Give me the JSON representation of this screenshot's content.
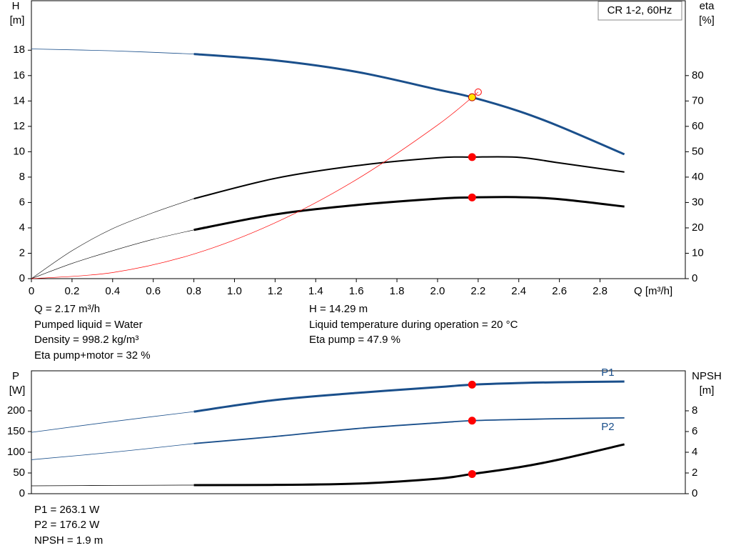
{
  "chart_data": [
    {
      "type": "line",
      "title": "CR 1-2, 60Hz",
      "ylabel": "H",
      "ylabel_unit": "[m]",
      "y2label": "eta",
      "y2label_unit": "[%]",
      "xlabel": "Q [m³/h]",
      "xlim": [
        0,
        3.22
      ],
      "ylim": [
        0,
        21.9
      ],
      "y2lim": [
        0,
        109.5
      ],
      "xticks": [
        0,
        0.2,
        0.4,
        0.6,
        0.8,
        {
          "value": 1,
          "label": "1.0"
        },
        1.2,
        1.4,
        1.6,
        1.8,
        {
          "value": 2,
          "label": "2.0"
        },
        2.2,
        2.4,
        2.6,
        2.8
      ],
      "yticks": [
        0,
        2,
        4,
        6,
        8,
        10,
        12,
        14,
        16,
        18
      ],
      "y2ticks": [
        0,
        10,
        20,
        30,
        40,
        50,
        60,
        70,
        80
      ],
      "series": [
        {
          "color": "#1a4f8b",
          "width": 0.8,
          "x": [
            0,
            0.4,
            0.8
          ],
          "values": [
            18.1,
            17.95,
            17.7
          ]
        },
        {
          "color": "#1a4f8b",
          "width": 3,
          "x": [
            0.8,
            1.2,
            1.6,
            2.0,
            2.17,
            2.4,
            2.6,
            2.92
          ],
          "values": [
            17.7,
            17.2,
            16.3,
            14.9,
            14.29,
            13.2,
            12.0,
            9.8
          ]
        },
        {
          "color": "#000000",
          "width": 0.6,
          "axis": "y2",
          "x": [
            0,
            0.2,
            0.4,
            0.6,
            0.8
          ],
          "values": [
            0,
            11,
            19.7,
            26,
            31.5
          ]
        },
        {
          "color": "#000000",
          "width": 2,
          "axis": "y2",
          "x": [
            0.8,
            1.2,
            1.6,
            2.0,
            2.17,
            2.4,
            2.6,
            2.92
          ],
          "values": [
            31.5,
            39.5,
            44.5,
            47.6,
            47.9,
            47.8,
            45.6,
            42
          ]
        },
        {
          "color": "#000000",
          "width": 0.6,
          "axis": "y2",
          "x": [
            0,
            0.2,
            0.4,
            0.6,
            0.8
          ],
          "values": [
            0,
            6,
            11,
            15.5,
            19.2
          ]
        },
        {
          "color": "#000000",
          "width": 3,
          "axis": "y2",
          "x": [
            0.8,
            1.2,
            1.6,
            2.0,
            2.17,
            2.4,
            2.6,
            2.92
          ],
          "values": [
            19.2,
            25.3,
            29,
            31.5,
            32,
            32.1,
            31.3,
            28.4
          ]
        },
        {
          "color": "#ff0000",
          "width": 0.7,
          "x": [
            0,
            0.4,
            0.8,
            1.2,
            1.6,
            2.0,
            2.2
          ],
          "values": [
            0,
            0.48,
            1.94,
            4.4,
            7.8,
            12.1,
            14.7
          ]
        }
      ],
      "markers": [
        {
          "x": 2.2,
          "value": 14.7,
          "color": "none",
          "stroke": "#ff0000"
        },
        {
          "x": 2.17,
          "value": 14.29,
          "color": "#ffe600",
          "stroke": "#c00000"
        },
        {
          "x": 2.17,
          "value": 47.9,
          "axis": "y2",
          "color": "#ff0000",
          "stroke": "#ff0000"
        },
        {
          "x": 2.17,
          "value": 32,
          "axis": "y2",
          "color": "#ff0000",
          "stroke": "#ff0000"
        }
      ],
      "notes": [
        "Q = 2.17 m³/h",
        "Pumped liquid = Water",
        "Density = 998.2 kg/m³",
        "Eta pump+motor = 32 %",
        "H = 14.29 m",
        "Liquid temperature during operation = 20 °C",
        "Eta pump = 47.9 %"
      ]
    },
    {
      "type": "line",
      "ylabel": "P",
      "ylabel_unit": "[W]",
      "y2label": "NPSH",
      "y2label_unit": "[m]",
      "xlim": [
        0,
        3.22
      ],
      "ylim": [
        0,
        296.5
      ],
      "y2lim": [
        0,
        11.86
      ],
      "yticks": [
        0,
        50,
        100,
        150,
        200
      ],
      "y2ticks": [
        0,
        2,
        4,
        6,
        8
      ],
      "series": [
        {
          "color": "#1a4f8b",
          "width": 0.8,
          "x": [
            0,
            0.4,
            0.8
          ],
          "values": [
            148,
            174,
            198
          ]
        },
        {
          "name": "P1",
          "color": "#1a4f8b",
          "width": 3,
          "x": [
            0.8,
            1.2,
            1.6,
            2.0,
            2.17,
            2.4,
            2.6,
            2.92
          ],
          "values": [
            198,
            226,
            243,
            257,
            263.1,
            267,
            269,
            270.7
          ]
        },
        {
          "color": "#1a4f8b",
          "width": 0.8,
          "x": [
            0,
            0.4,
            0.8
          ],
          "values": [
            82,
            100,
            121
          ]
        },
        {
          "name": "P2",
          "color": "#1a4f8b",
          "width": 1.8,
          "x": [
            0.8,
            1.2,
            1.6,
            2.0,
            2.17,
            2.4,
            2.6,
            2.92
          ],
          "values": [
            121,
            138,
            157,
            171,
            176.2,
            179,
            181,
            183
          ]
        },
        {
          "color": "#000000",
          "width": 0.8,
          "axis": "y2",
          "x": [
            0,
            0.4,
            0.8
          ],
          "values": [
            0.76,
            0.8,
            0.83
          ]
        },
        {
          "color": "#000000",
          "width": 3,
          "axis": "y2",
          "x": [
            0.8,
            1.2,
            1.6,
            2.0,
            2.17,
            2.4,
            2.6,
            2.92
          ],
          "values": [
            0.83,
            0.85,
            0.97,
            1.45,
            1.9,
            2.55,
            3.3,
            4.76
          ]
        }
      ],
      "markers": [
        {
          "x": 2.17,
          "value": 263.1,
          "color": "#ff0000",
          "stroke": "#ff0000"
        },
        {
          "x": 2.17,
          "value": 176.2,
          "color": "#ff0000",
          "stroke": "#ff0000"
        },
        {
          "x": 2.17,
          "value": 1.9,
          "axis": "y2",
          "color": "#ff0000",
          "stroke": "#ff0000"
        }
      ],
      "notes": [
        "P1 = 263.1 W",
        "P2 = 176.2 W",
        "NPSH = 1.9 m"
      ]
    }
  ]
}
